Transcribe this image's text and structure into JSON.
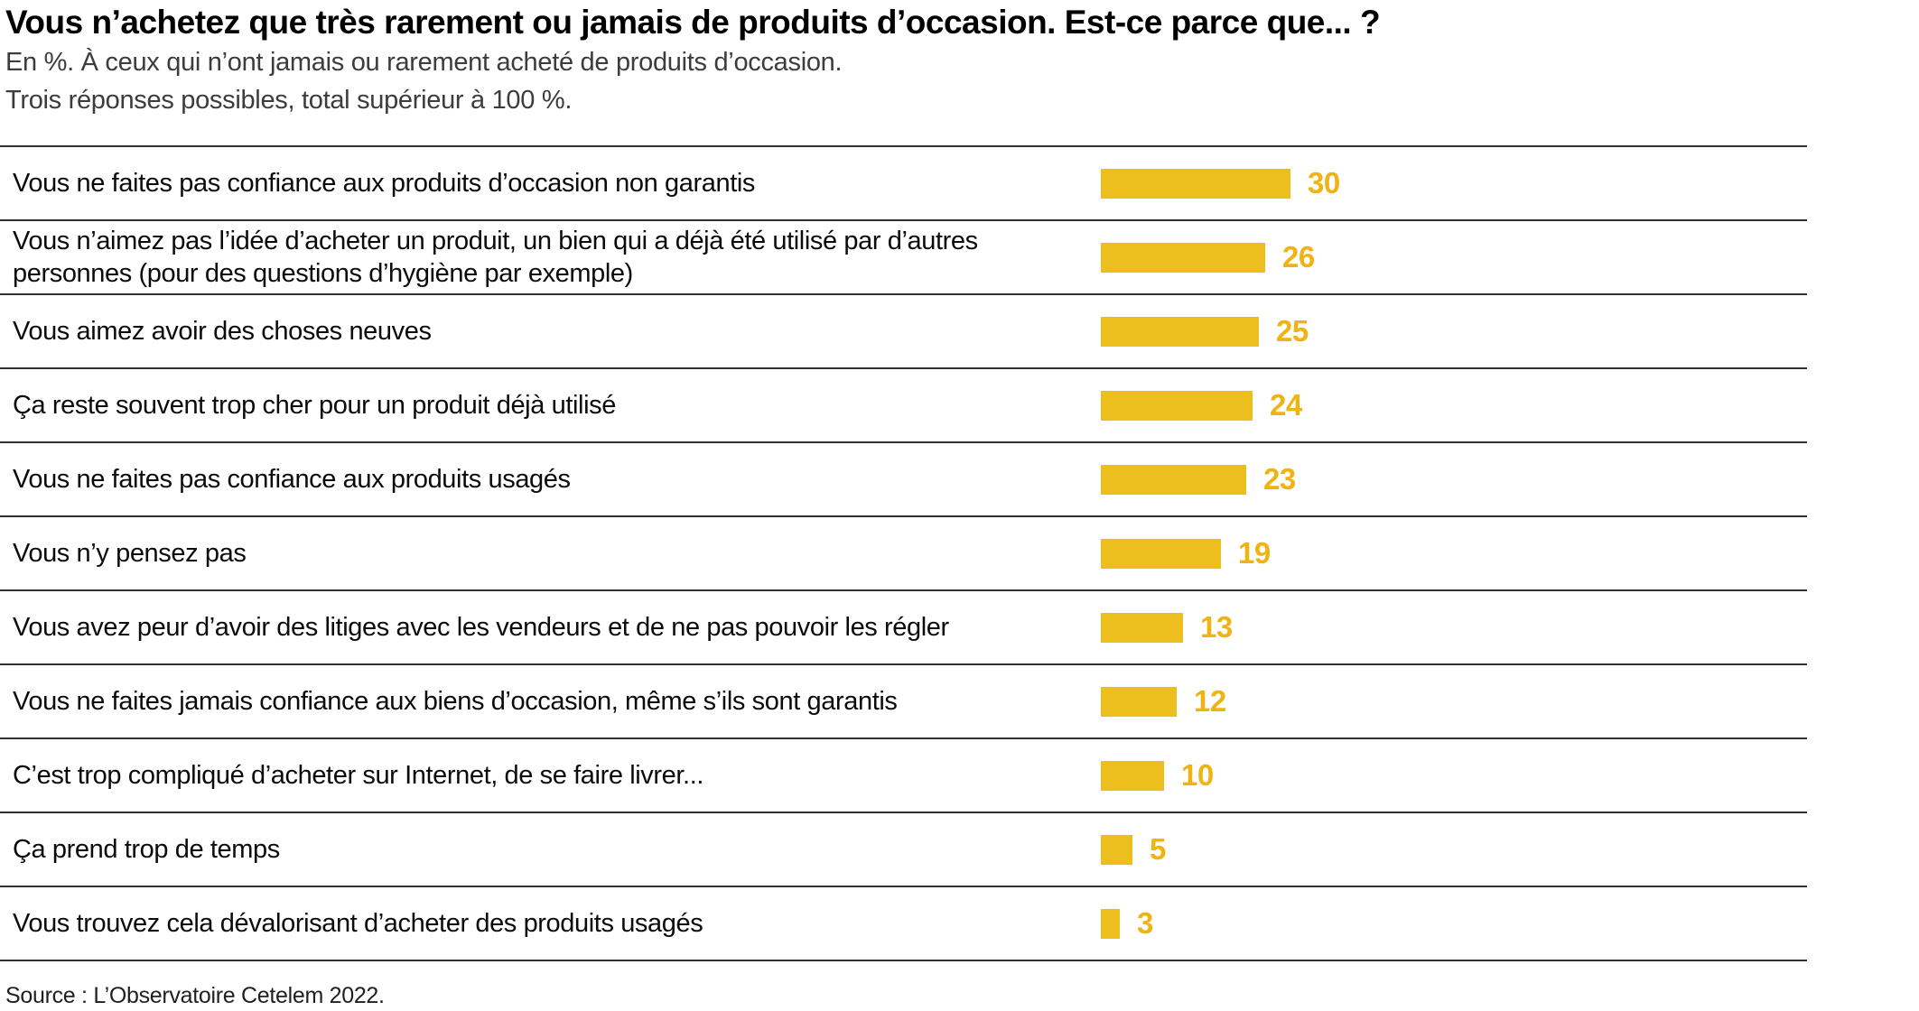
{
  "header": {
    "title": "Vous n’achetez que très rarement ou jamais de produits d’occasion. Est-ce parce que... ?",
    "subtitle_line1": "En %. À ceux qui n’ont jamais ou rarement acheté de produits d’occasion.",
    "subtitle_line2": "Trois réponses possibles, total supérieur à 100 %."
  },
  "chart_data": {
    "type": "bar",
    "orientation": "horizontal",
    "unit": "%",
    "title": "Vous n’achetez que très rarement ou jamais de produits d’occasion. Est-ce parce que... ?",
    "categories": [
      "Vous ne faites pas confiance aux produits d’occasion non garantis",
      "Vous n’aimez pas l’idée d’acheter un produit, un bien qui a déjà été utilisé par d’autres personnes (pour des questions d’hygiène par exemple)",
      "Vous aimez avoir des choses neuves",
      "Ça reste souvent trop cher pour un produit déjà utilisé",
      "Vous ne faites pas confiance aux produits usagés",
      "Vous n’y pensez pas",
      "Vous avez peur d’avoir des litiges avec les vendeurs et de ne pas pouvoir les régler",
      "Vous ne faites jamais confiance aux biens d’occasion, même s’ils sont garantis",
      "C’est trop compliqué d’acheter sur Internet, de se faire livrer...",
      "Ça prend trop de temps",
      "Vous trouvez cela dévalorisant d’acheter des produits usagés"
    ],
    "values": [
      30,
      26,
      25,
      24,
      23,
      19,
      13,
      12,
      10,
      5,
      3
    ],
    "data_labels_shown": true,
    "axis_shown": false,
    "grid": false,
    "legend": "none",
    "colors": {
      "bar": "#ecbf1e",
      "value_label": "#efb414",
      "separator_line": "#2f2f2f"
    }
  },
  "footer": {
    "source": "Source : L’Observatoire Cetelem 2022."
  }
}
